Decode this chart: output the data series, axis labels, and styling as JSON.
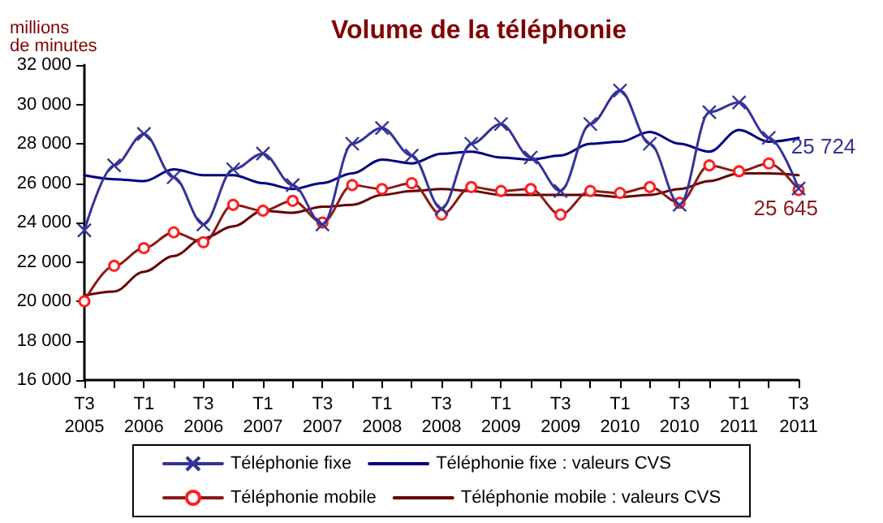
{
  "chart_data": {
    "type": "line",
    "title": "Volume de la téléphonie",
    "ylabel": "millions\nde minutes",
    "categories": [
      "T3\n2005",
      null,
      "T1\n2006",
      null,
      "T3\n2006",
      null,
      "T1\n2007",
      null,
      "T3\n2007",
      null,
      "T1\n2008",
      null,
      "T3\n2008",
      null,
      "T1\n2009",
      null,
      "T3\n2009",
      null,
      "T1\n2010",
      null,
      "T3\n2010",
      null,
      "T1\n2011",
      null,
      "T3\n2011"
    ],
    "series": [
      {
        "name": "Téléphonie fixe",
        "color": "#333399",
        "marker": "cross",
        "values": [
          23600,
          26900,
          28500,
          26300,
          23900,
          26700,
          27500,
          25900,
          23900,
          28000,
          28800,
          27400,
          24700,
          28000,
          29000,
          27300,
          25600,
          29000,
          30700,
          28000,
          24900,
          29600,
          30100,
          28300,
          25724
        ],
        "value_labels": [
          null,
          null,
          null,
          null,
          null,
          null,
          null,
          null,
          null,
          null,
          null,
          null,
          null,
          null,
          null,
          null,
          null,
          null,
          null,
          null,
          null,
          null,
          null,
          null,
          "25 724"
        ]
      },
      {
        "name": "Téléphonie fixe : valeurs CVS",
        "color": "#000080",
        "marker": "none",
        "values": [
          26400,
          26200,
          26100,
          26700,
          26400,
          26400,
          26000,
          25700,
          26000,
          26500,
          27200,
          27000,
          27500,
          27600,
          27300,
          27200,
          27400,
          28000,
          28100,
          28600,
          28000,
          27600,
          28700,
          28100,
          28300
        ]
      },
      {
        "name": "Téléphonie mobile",
        "color": "#8b1a1a",
        "marker": "circle",
        "values": [
          20000,
          21800,
          22700,
          23500,
          23000,
          24900,
          24600,
          25100,
          24000,
          25900,
          25700,
          26000,
          24400,
          25800,
          25600,
          25700,
          24400,
          25600,
          25500,
          25800,
          25000,
          26900,
          26600,
          27000,
          25645
        ],
        "value_labels": [
          null,
          null,
          null,
          null,
          null,
          null,
          null,
          null,
          null,
          null,
          null,
          null,
          null,
          null,
          null,
          null,
          null,
          null,
          null,
          null,
          null,
          null,
          null,
          null,
          "25 645"
        ]
      },
      {
        "name": "Téléphonie mobile : valeurs CVS",
        "color": "#660000",
        "marker": "none",
        "values": [
          20300,
          20500,
          21500,
          22300,
          23200,
          23800,
          24600,
          24500,
          24800,
          24900,
          25400,
          25600,
          25700,
          25600,
          25400,
          25400,
          25400,
          25400,
          25300,
          25400,
          25700,
          26100,
          26500,
          26500,
          26400
        ]
      }
    ],
    "ylim": [
      16000,
      32000
    ],
    "yticks": [
      {
        "value": 16000,
        "label": "16 000"
      },
      {
        "value": 18000,
        "label": "18 000"
      },
      {
        "value": 20000,
        "label": "20 000"
      },
      {
        "value": 22000,
        "label": "22 000"
      },
      {
        "value": 24000,
        "label": "24 000"
      },
      {
        "value": 26000,
        "label": "26 000"
      },
      {
        "value": 28000,
        "label": "28 000"
      },
      {
        "value": 30000,
        "label": "30 000"
      },
      {
        "value": 32000,
        "label": "32 000"
      }
    ],
    "grid": false,
    "legend": "bottom",
    "line_style": "solid"
  }
}
